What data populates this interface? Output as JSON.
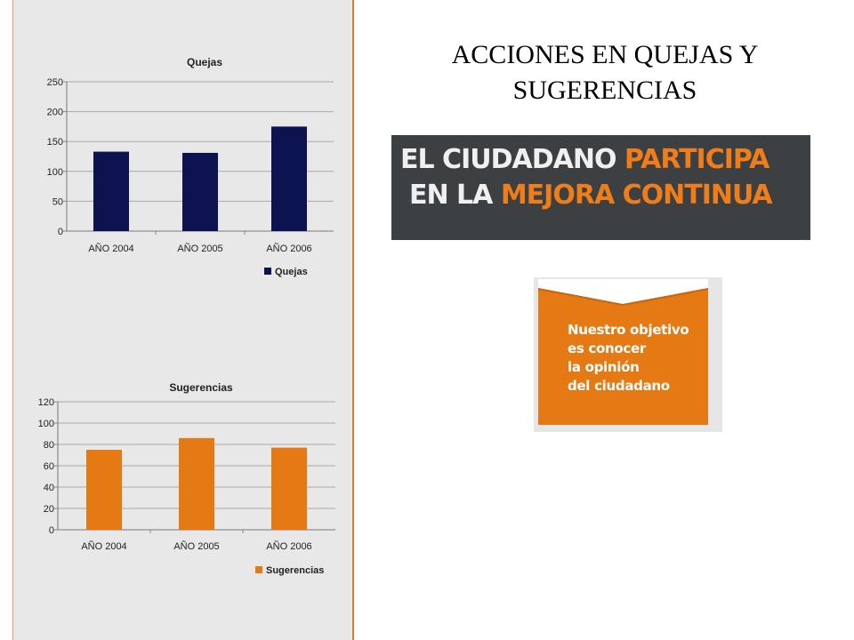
{
  "slide": {
    "title_lines": [
      "ACCIONES EN QUEJAS Y",
      "SUGERENCIAS"
    ]
  },
  "banner": {
    "line1_plain": "EL CIUDADANO ",
    "line1_highlight": "PARTICIPA",
    "line2_plain": "EN LA ",
    "line2_highlight": "MEJORA CONTINUA",
    "background_color": "#3c4043",
    "highlight_color": "#ee7d1a"
  },
  "objective": {
    "lines": [
      "Nuestro objetivo",
      "es conocer",
      "la opinión",
      "del ciudadano"
    ],
    "color": "#e57a15"
  },
  "chart_data": [
    {
      "type": "bar",
      "title": "Quejas",
      "categories": [
        "AÑO 2004",
        "AÑO 2005",
        "AÑO 2006"
      ],
      "series": [
        {
          "name": "Quejas",
          "values": [
            133,
            131,
            175
          ],
          "color": "#0d1350"
        }
      ],
      "ylim": [
        0,
        250
      ],
      "yticks": [
        0,
        50,
        100,
        150,
        200,
        250
      ],
      "xlabel": "",
      "ylabel": "",
      "grid": true,
      "legend": "bottom-right"
    },
    {
      "type": "bar",
      "title": "Sugerencias",
      "categories": [
        "AÑO 2004",
        "AÑO 2005",
        "AÑO 2006"
      ],
      "series": [
        {
          "name": "Sugerencias",
          "values": [
            75,
            86,
            77
          ],
          "color": "#e57a15"
        }
      ],
      "ylim": [
        0,
        120
      ],
      "yticks": [
        0,
        20,
        40,
        60,
        80,
        100,
        120
      ],
      "xlabel": "",
      "ylabel": "",
      "grid": true,
      "legend": "bottom-right"
    }
  ]
}
